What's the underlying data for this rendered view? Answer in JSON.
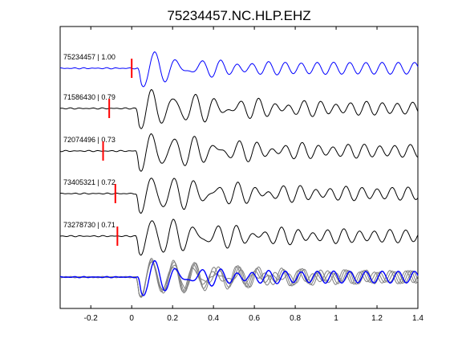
{
  "chart_data": {
    "type": "line",
    "title": "75234457.NC.HLP.EHZ",
    "xlabel": "",
    "ylabel": "",
    "xlim": [
      -0.35,
      1.4
    ],
    "xticks": [
      -0.2,
      0,
      0.2,
      0.4,
      0.6,
      0.8,
      1,
      1.2,
      1.4
    ],
    "xtick_labels": [
      "-0.2",
      "0",
      "0.2",
      "0.4",
      "0.6",
      "0.8",
      "1",
      "1.2",
      "1.4"
    ],
    "grid": false,
    "legend": "none",
    "colors": {
      "master": "#0000ff",
      "trace": "#000000",
      "overlay": "#808080",
      "pick": "#ff0000"
    },
    "series": [
      {
        "label": "75234457 | 1.00",
        "pick_time": 0.0,
        "color": "master",
        "arrival": 0.03,
        "amplitude": 1.0,
        "period": 0.11,
        "coda": 0.22
      },
      {
        "label": "71586430 | 0.79",
        "pick_time": -0.11,
        "color": "trace",
        "arrival": 0.02,
        "amplitude": 1.0,
        "period": 0.105,
        "coda": 0.4
      },
      {
        "label": "72074496 | 0.73",
        "pick_time": -0.14,
        "color": "trace",
        "arrival": 0.02,
        "amplitude": 1.0,
        "period": 0.105,
        "coda": 0.4
      },
      {
        "label": "73405321 | 0.72",
        "pick_time": -0.08,
        "color": "trace",
        "arrival": 0.02,
        "amplitude": 1.0,
        "period": 0.105,
        "coda": 0.4
      },
      {
        "label": "73278730 | 0.71",
        "pick_time": -0.07,
        "color": "trace",
        "arrival": 0.02,
        "amplitude": 1.0,
        "period": 0.105,
        "coda": 0.4
      }
    ],
    "stack": {
      "description_label": "",
      "master_index": 0
    }
  }
}
